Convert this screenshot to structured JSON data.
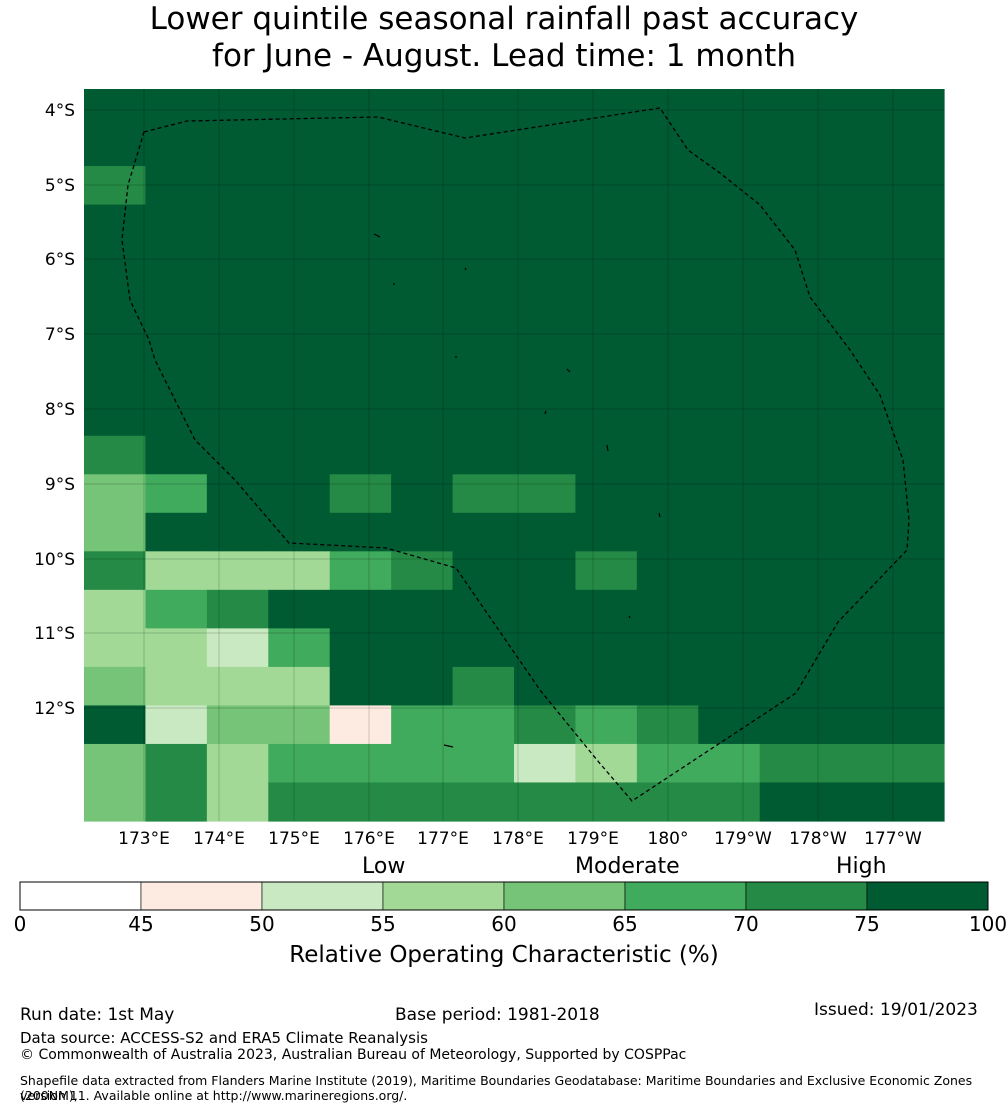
{
  "title": {
    "line1": "Lower quintile seasonal rainfall past accuracy",
    "line2": "for June - August. Lead time: 1 month"
  },
  "map": {
    "lat_labels": [
      "4°S",
      "5°S",
      "6°S",
      "7°S",
      "8°S",
      "9°S",
      "10°S",
      "11°S",
      "12°S"
    ],
    "lon_labels": [
      "173°E",
      "174°E",
      "175°E",
      "176°E",
      "177°E",
      "178°E",
      "179°E",
      "180°",
      "179°W",
      "178°W",
      "177°W"
    ],
    "border_style": "dashed",
    "grid_cells": [
      "77777777777777",
      "77777777777777",
      "67777777777777",
      "77777777777777",
      "77777777777777",
      "77777777777777",
      "77777777777777",
      "77777777777777",
      "77777777777777",
      "67777777777777",
      "45776766777777",
      "47777777777777",
      "63335677677777",
      "35677777777777",
      "33257777777777",
      "43337767777777",
      "72441556567777",
      "46355552355666",
      "46366666666777"
    ]
  },
  "colorbar": {
    "categories": {
      "low": "Low",
      "moderate": "Moderate",
      "high": "High"
    },
    "ticks": [
      "0",
      "45",
      "50",
      "55",
      "60",
      "65",
      "70",
      "75",
      "100"
    ],
    "bins": [
      {
        "from": 0,
        "to": 45,
        "color": "#ffffff"
      },
      {
        "from": 45,
        "to": 50,
        "color": "#fdebe1"
      },
      {
        "from": 50,
        "to": 55,
        "color": "#c8e9c1"
      },
      {
        "from": 55,
        "to": 60,
        "color": "#a2d997"
      },
      {
        "from": 60,
        "to": 65,
        "color": "#76c478"
      },
      {
        "from": 65,
        "to": 70,
        "color": "#40aa5d"
      },
      {
        "from": 70,
        "to": 75,
        "color": "#248a45"
      },
      {
        "from": 75,
        "to": 100,
        "color": "#005a32"
      }
    ],
    "title": "Relative Operating Characteristic (%)"
  },
  "footer": {
    "run_date": "Run date: 1st May",
    "base_period": "Base period: 1981-2018",
    "issued": "Issued: 19/01/2023",
    "data_source": "Data source: ACCESS-S2 and ERA5 Climate Reanalysis",
    "copyright": "© Commonwealth of Australia 2023, Australian Bureau of Meteorology, Supported by COSPPac",
    "shapefile_line1": "Shapefile data extracted from Flanders Marine Institute (2019), Maritime Boundaries Geodatabase: Maritime Boundaries and Exclusive Economic Zones (200NM),",
    "shapefile_line2": "version 11. Available online at http://www.marineregions.org/."
  }
}
